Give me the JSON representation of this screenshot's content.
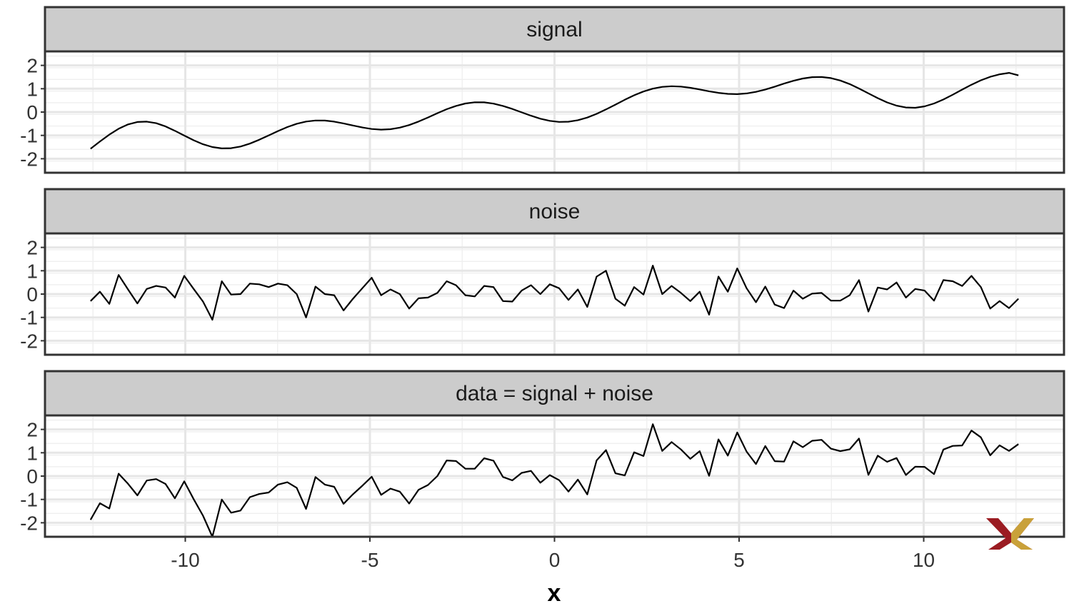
{
  "chart_data": [
    {
      "type": "line",
      "panel": "signal",
      "x": [
        -12.566,
        -12.312,
        -12.058,
        -11.805,
        -11.551,
        -11.297,
        -11.043,
        -10.789,
        -10.535,
        -10.282,
        -10.028,
        -9.774,
        -9.52,
        -9.266,
        -9.012,
        -8.759,
        -8.505,
        -8.251,
        -7.997,
        -7.743,
        -7.489,
        -7.236,
        -6.982,
        -6.728,
        -6.474,
        -6.22,
        -5.966,
        -5.713,
        -5.459,
        -5.205,
        -4.951,
        -4.697,
        -4.443,
        -4.19,
        -3.936,
        -3.682,
        -3.428,
        -3.174,
        -2.92,
        -2.667,
        -2.413,
        -2.159,
        -1.905,
        -1.651,
        -1.397,
        -1.143,
        -0.89,
        -0.636,
        -0.382,
        -0.128,
        0.126,
        0.38,
        0.633,
        0.887,
        1.141,
        1.395,
        1.649,
        1.903,
        2.156,
        2.41,
        2.664,
        2.918,
        3.172,
        3.426,
        3.679,
        3.933,
        4.187,
        4.441,
        4.695,
        4.949,
        5.202,
        5.456,
        5.71,
        5.964,
        6.218,
        6.472,
        6.725,
        6.979,
        7.233,
        7.487,
        7.741,
        7.995,
        8.248,
        8.502,
        8.756,
        9.01,
        9.264,
        9.518,
        9.771,
        10.025,
        10.279,
        10.533,
        10.787,
        11.041,
        11.294,
        11.548,
        11.802,
        12.056,
        12.31,
        12.566
      ],
      "y": [
        -1.571,
        -1.262,
        -0.968,
        -0.715,
        -0.529,
        -0.425,
        -0.409,
        -0.477,
        -0.615,
        -0.8,
        -1.007,
        -1.208,
        -1.379,
        -1.499,
        -1.557,
        -1.548,
        -1.477,
        -1.351,
        -1.187,
        -1.002,
        -0.814,
        -0.642,
        -0.502,
        -0.406,
        -0.36,
        -0.364,
        -0.41,
        -0.486,
        -0.576,
        -0.662,
        -0.726,
        -0.753,
        -0.735,
        -0.668,
        -0.556,
        -0.406,
        -0.232,
        -0.05,
        0.121,
        0.264,
        0.366,
        0.418,
        0.415,
        0.362,
        0.264,
        0.135,
        -0.011,
        -0.156,
        -0.283,
        -0.376,
        -0.423,
        -0.414,
        -0.35,
        -0.235,
        -0.077,
        0.112,
        0.318,
        0.526,
        0.718,
        0.881,
        1.003,
        1.079,
        1.108,
        1.092,
        1.041,
        0.969,
        0.891,
        0.823,
        0.779,
        0.769,
        0.799,
        0.867,
        0.968,
        1.09,
        1.22,
        1.341,
        1.438,
        1.495,
        1.503,
        1.455,
        1.351,
        1.198,
        1.009,
        0.801,
        0.595,
        0.413,
        0.275,
        0.196,
        0.185,
        0.244,
        0.366,
        0.539,
        0.744,
        0.962,
        1.173,
        1.36,
        1.51,
        1.617,
        1.679,
        1.571
      ]
    },
    {
      "type": "line",
      "panel": "noise",
      "x": [
        -12.566,
        -12.312,
        -12.058,
        -11.805,
        -11.551,
        -11.297,
        -11.043,
        -10.789,
        -10.535,
        -10.282,
        -10.028,
        -9.774,
        -9.52,
        -9.266,
        -9.012,
        -8.759,
        -8.505,
        -8.251,
        -7.997,
        -7.743,
        -7.489,
        -7.236,
        -6.982,
        -6.728,
        -6.474,
        -6.22,
        -5.966,
        -5.713,
        -5.459,
        -5.205,
        -4.951,
        -4.697,
        -4.443,
        -4.19,
        -3.936,
        -3.682,
        -3.428,
        -3.174,
        -2.92,
        -2.667,
        -2.413,
        -2.159,
        -1.905,
        -1.651,
        -1.397,
        -1.143,
        -0.89,
        -0.636,
        -0.382,
        -0.128,
        0.126,
        0.38,
        0.633,
        0.887,
        1.141,
        1.395,
        1.649,
        1.903,
        2.156,
        2.41,
        2.664,
        2.918,
        3.172,
        3.426,
        3.679,
        3.933,
        4.187,
        4.441,
        4.695,
        4.949,
        5.202,
        5.456,
        5.71,
        5.964,
        6.218,
        6.472,
        6.725,
        6.979,
        7.233,
        7.487,
        7.741,
        7.995,
        8.248,
        8.502,
        8.756,
        9.01,
        9.264,
        9.518,
        9.771,
        10.025,
        10.279,
        10.533,
        10.787,
        11.041,
        11.294,
        11.548,
        11.802,
        12.056,
        12.31,
        12.566
      ],
      "y": [
        -0.3,
        0.1,
        -0.42,
        0.82,
        0.2,
        -0.4,
        0.22,
        0.35,
        0.28,
        -0.15,
        0.78,
        0.22,
        -0.32,
        -1.1,
        0.55,
        -0.02,
        0.0,
        0.45,
        0.42,
        0.3,
        0.45,
        0.38,
        0.0,
        -1.0,
        0.32,
        0.0,
        -0.05,
        -0.7,
        -0.2,
        0.25,
        0.7,
        -0.05,
        0.2,
        0.0,
        -0.62,
        -0.18,
        -0.15,
        0.05,
        0.55,
        0.38,
        -0.05,
        -0.1,
        0.35,
        0.3,
        -0.3,
        -0.32,
        0.15,
        0.38,
        0.0,
        0.42,
        0.25,
        -0.25,
        0.2,
        -0.55,
        0.75,
        1.0,
        -0.2,
        -0.5,
        0.3,
        -0.02,
        1.22,
        0.0,
        0.35,
        0.05,
        -0.3,
        0.1,
        -0.88,
        0.75,
        0.1,
        1.1,
        0.25,
        -0.35,
        0.32,
        -0.45,
        -0.6,
        0.15,
        -0.2,
        0.02,
        0.05,
        -0.28,
        -0.28,
        -0.05,
        0.6,
        -0.75,
        0.28,
        0.2,
        0.5,
        -0.15,
        0.22,
        0.15,
        -0.28,
        0.6,
        0.55,
        0.35,
        0.78,
        0.3,
        -0.62,
        -0.3,
        -0.6,
        -0.2
      ]
    },
    {
      "type": "line",
      "panel": "data = signal + noise",
      "x": [
        -12.566,
        -12.312,
        -12.058,
        -11.805,
        -11.551,
        -11.297,
        -11.043,
        -10.789,
        -10.535,
        -10.282,
        -10.028,
        -9.774,
        -9.52,
        -9.266,
        -9.012,
        -8.759,
        -8.505,
        -8.251,
        -7.997,
        -7.743,
        -7.489,
        -7.236,
        -6.982,
        -6.728,
        -6.474,
        -6.22,
        -5.966,
        -5.713,
        -5.459,
        -5.205,
        -4.951,
        -4.697,
        -4.443,
        -4.19,
        -3.936,
        -3.682,
        -3.428,
        -3.174,
        -2.92,
        -2.667,
        -2.413,
        -2.159,
        -1.905,
        -1.651,
        -1.397,
        -1.143,
        -0.89,
        -0.636,
        -0.382,
        -0.128,
        0.126,
        0.38,
        0.633,
        0.887,
        1.141,
        1.395,
        1.649,
        1.903,
        2.156,
        2.41,
        2.664,
        2.918,
        3.172,
        3.426,
        3.679,
        3.933,
        4.187,
        4.441,
        4.695,
        4.949,
        5.202,
        5.456,
        5.71,
        5.964,
        6.218,
        6.472,
        6.725,
        6.979,
        7.233,
        7.487,
        7.741,
        7.995,
        8.248,
        8.502,
        8.756,
        9.01,
        9.264,
        9.518,
        9.771,
        10.025,
        10.279,
        10.533,
        10.787,
        11.041,
        11.294,
        11.548,
        11.802,
        12.056,
        12.31,
        12.566
      ],
      "y": [
        -1.871,
        -1.162,
        -1.388,
        0.105,
        -0.329,
        -0.825,
        -0.189,
        -0.127,
        -0.335,
        -0.95,
        -0.227,
        -0.988,
        -1.699,
        -2.599,
        -1.007,
        -1.568,
        -1.477,
        -0.901,
        -0.767,
        -0.702,
        -0.364,
        -0.262,
        -0.502,
        -1.406,
        -0.04,
        -0.364,
        -0.46,
        -1.186,
        -0.776,
        -0.412,
        -0.026,
        -0.803,
        -0.535,
        -0.668,
        -1.176,
        -0.586,
        -0.382,
        0.0,
        0.671,
        0.644,
        0.316,
        0.318,
        0.765,
        0.662,
        -0.036,
        -0.185,
        0.139,
        0.224,
        -0.283,
        0.044,
        -0.173,
        -0.664,
        -0.15,
        -0.785,
        0.673,
        1.112,
        0.118,
        0.026,
        1.018,
        0.861,
        2.223,
        1.079,
        1.458,
        1.142,
        0.741,
        1.069,
        0.011,
        1.573,
        0.879,
        1.869,
        1.049,
        0.517,
        1.288,
        0.64,
        0.62,
        1.491,
        1.238,
        1.515,
        1.553,
        1.175,
        1.071,
        1.148,
        1.609,
        0.051,
        0.875,
        0.613,
        0.775,
        0.046,
        0.405,
        0.394,
        0.086,
        1.139,
        1.294,
        1.312,
        1.953,
        1.66,
        0.89,
        1.317,
        1.079,
        1.371
      ]
    }
  ],
  "strips": [
    "signal",
    "noise",
    "data = signal + noise"
  ],
  "axes": {
    "xlabel": "x",
    "xlim": [
      -13.8,
      13.8
    ],
    "ylim": [
      -2.6,
      2.6
    ],
    "x_ticks": [
      -10,
      -5,
      0,
      5,
      10
    ],
    "x_tick_labels": [
      "-10",
      "-5",
      "0",
      "5",
      "10"
    ],
    "y_ticks": [
      -2,
      -1,
      0,
      1,
      2
    ],
    "y_tick_labels": [
      "-2",
      "-1",
      "0",
      "1",
      "2"
    ],
    "grid": true
  },
  "logo": {
    "primary_color": "#9b1c22",
    "secondary_color": "#c9a13a"
  }
}
